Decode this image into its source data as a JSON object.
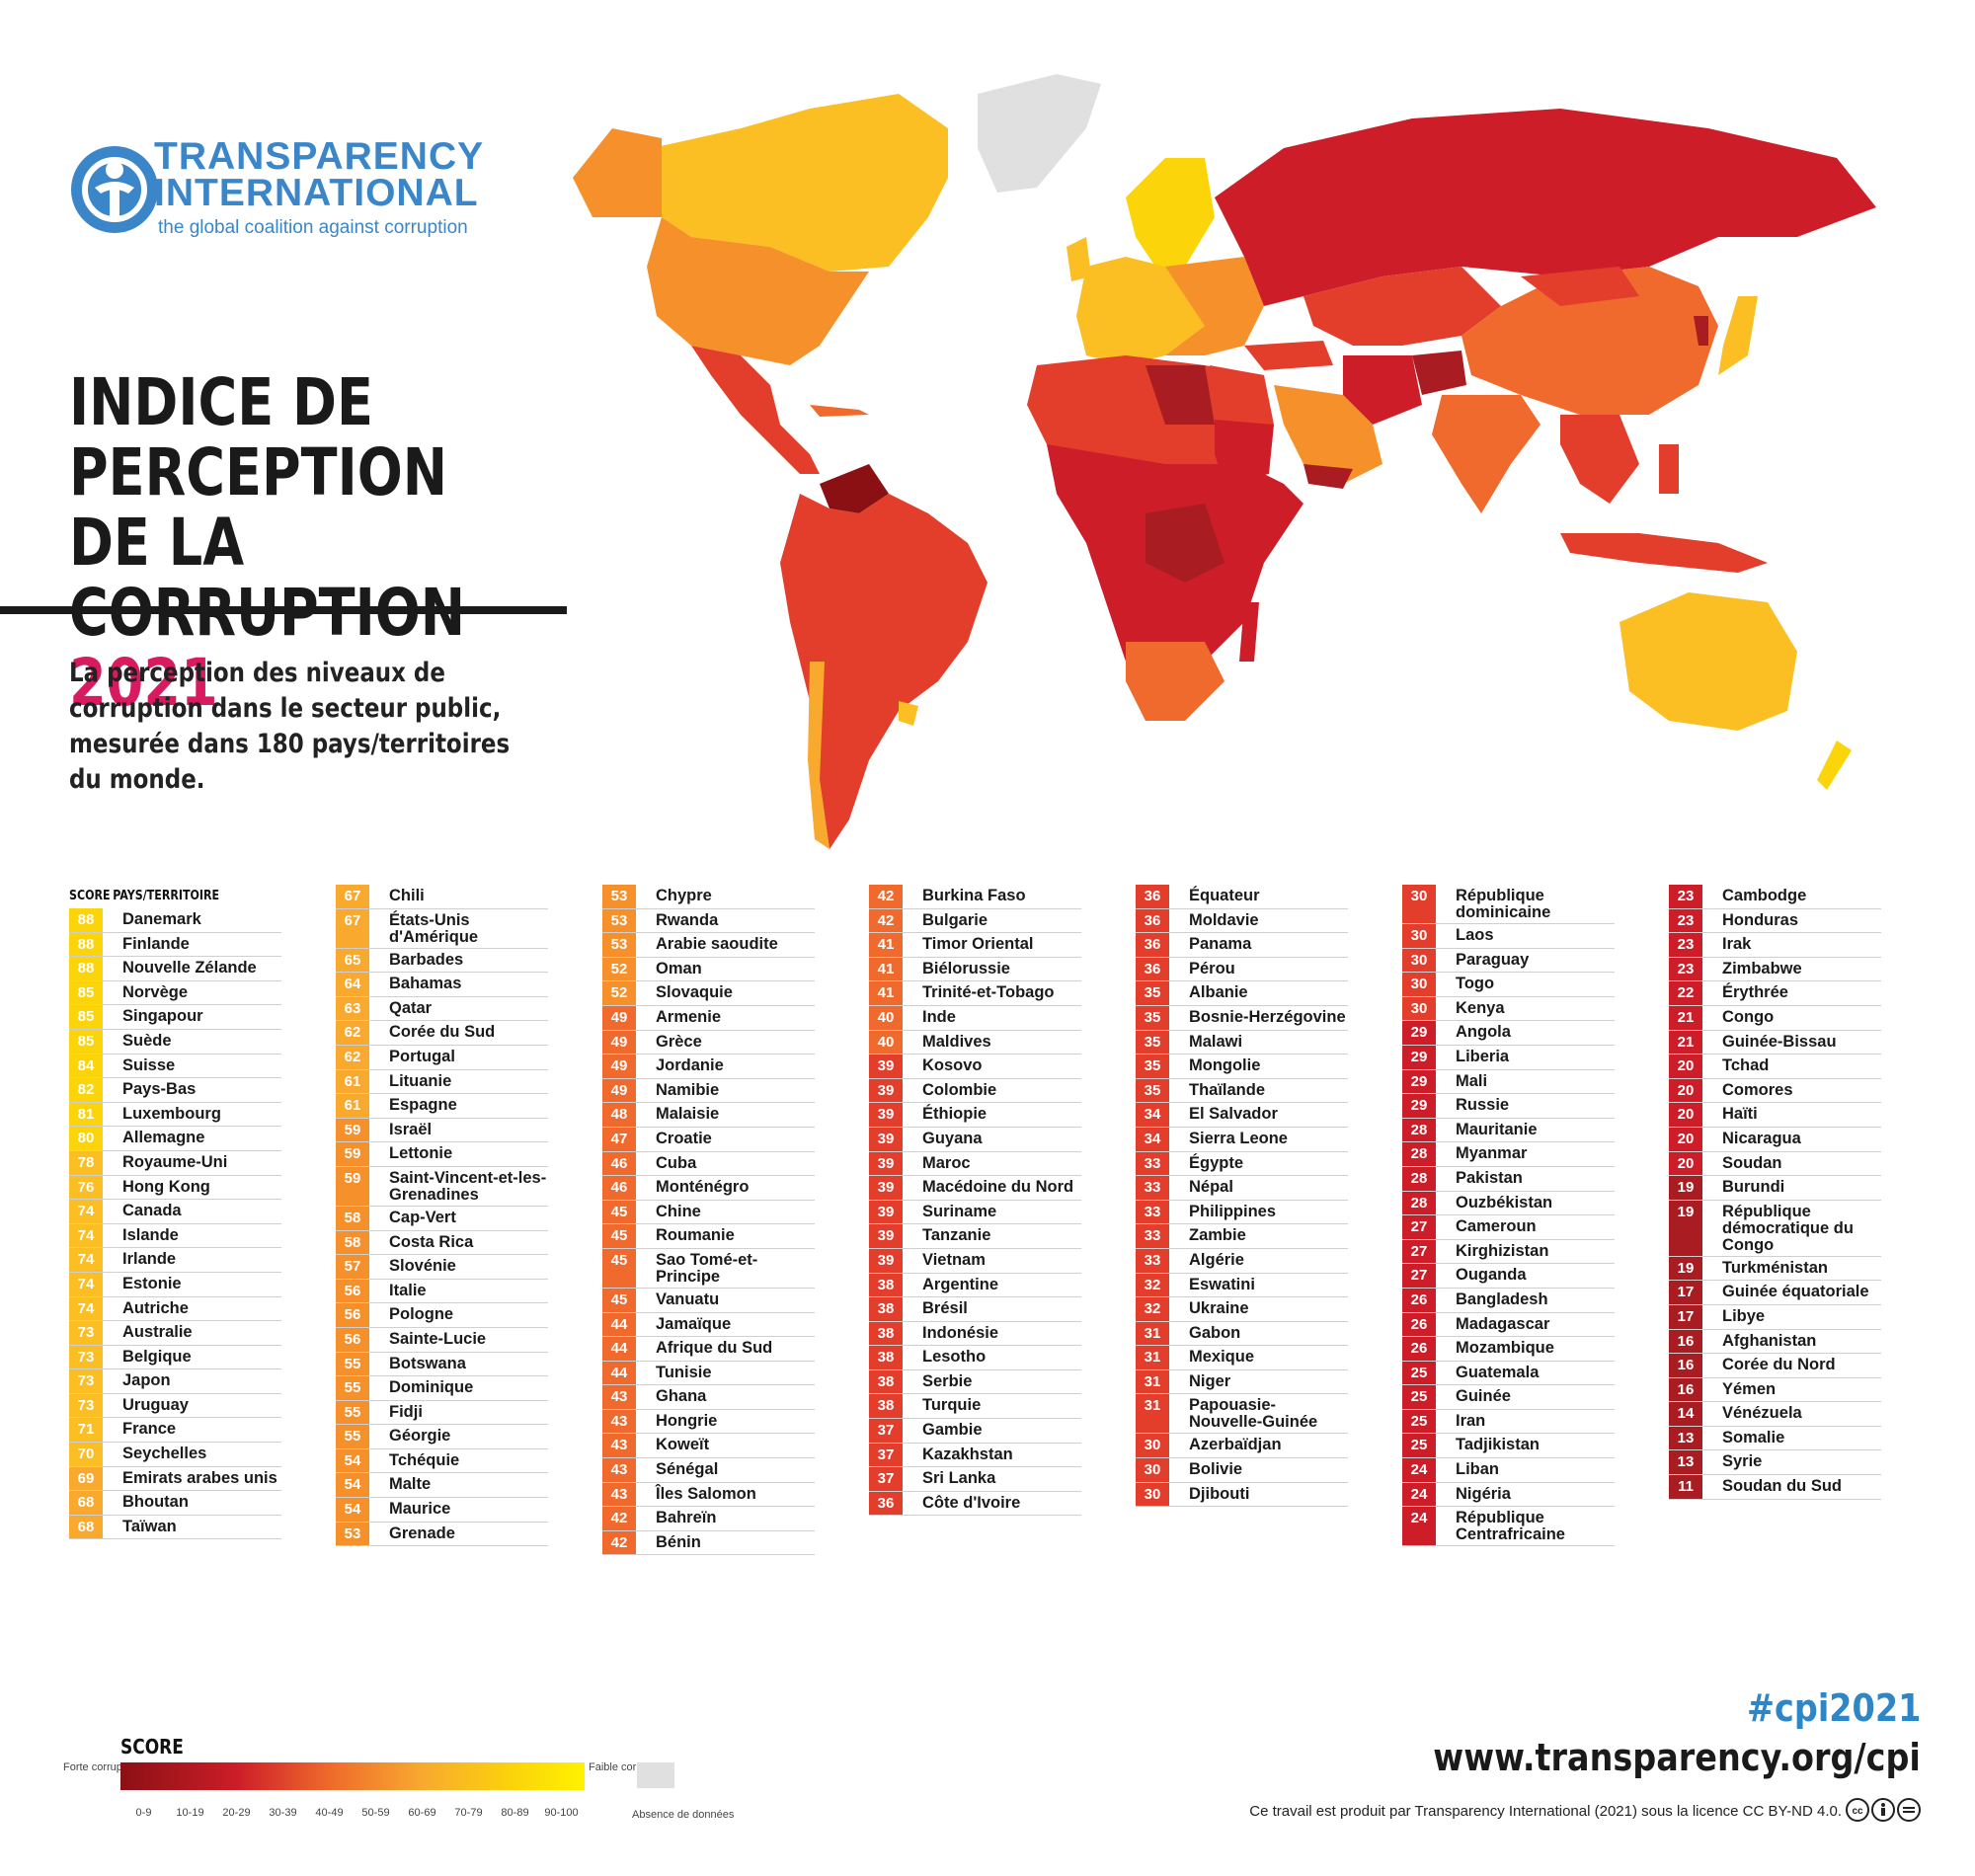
{
  "logo": {
    "line1": "TRANSPARENCY",
    "line2": "INTERNATIONAL",
    "tagline": "the global coalition against corruption"
  },
  "title": {
    "line1": "INDICE DE",
    "line2": "PERCEPTION DE LA",
    "line3": "CORRUPTION",
    "year": "2021"
  },
  "subtitle": "La perception des niveaux de corruption dans le secteur public, mesurée dans 180 pays/territoires du monde.",
  "table_headers": {
    "score": "SCORE",
    "country": "PAYS/TERRITOIRE"
  },
  "colors": {
    "s0_9": "#8b1014",
    "s10_19": "#a91d22",
    "s20_29": "#cc1d28",
    "s30_39": "#e33e2c",
    "s40_49": "#ef6a2c",
    "s50_59": "#f5902b",
    "s60_69": "#f8a92e",
    "s70_79": "#fbbf24",
    "s80_89": "#fbd40a",
    "s90_100": "#fff200",
    "no_data": "#e0e0e0",
    "accent": "#d81b60",
    "brand": "#3a86c8"
  },
  "columns": [
    [
      {
        "score": "88",
        "name": "Danemark"
      },
      {
        "score": "88",
        "name": "Finlande"
      },
      {
        "score": "88",
        "name": "Nouvelle Zélande"
      },
      {
        "score": "85",
        "name": "Norvège"
      },
      {
        "score": "85",
        "name": "Singapour"
      },
      {
        "score": "85",
        "name": "Suède"
      },
      {
        "score": "84",
        "name": "Suisse"
      },
      {
        "score": "82",
        "name": "Pays-Bas"
      },
      {
        "score": "81",
        "name": "Luxembourg"
      },
      {
        "score": "80",
        "name": "Allemagne"
      },
      {
        "score": "78",
        "name": "Royaume-Uni"
      },
      {
        "score": "76",
        "name": "Hong Kong"
      },
      {
        "score": "74",
        "name": "Canada"
      },
      {
        "score": "74",
        "name": "Islande"
      },
      {
        "score": "74",
        "name": "Irlande"
      },
      {
        "score": "74",
        "name": "Estonie"
      },
      {
        "score": "74",
        "name": "Autriche"
      },
      {
        "score": "73",
        "name": "Australie"
      },
      {
        "score": "73",
        "name": "Belgique"
      },
      {
        "score": "73",
        "name": "Japon"
      },
      {
        "score": "73",
        "name": "Uruguay"
      },
      {
        "score": "71",
        "name": "France"
      },
      {
        "score": "70",
        "name": "Seychelles"
      },
      {
        "score": "69",
        "name": "Emirats arabes unis"
      },
      {
        "score": "68",
        "name": "Bhoutan"
      },
      {
        "score": "68",
        "name": "Taïwan"
      }
    ],
    [
      {
        "score": "67",
        "name": "Chili"
      },
      {
        "score": "67",
        "name": "États-Unis d'Amérique"
      },
      {
        "score": "65",
        "name": "Barbades"
      },
      {
        "score": "64",
        "name": "Bahamas"
      },
      {
        "score": "63",
        "name": "Qatar"
      },
      {
        "score": "62",
        "name": "Corée du Sud"
      },
      {
        "score": "62",
        "name": "Portugal"
      },
      {
        "score": "61",
        "name": "Lituanie"
      },
      {
        "score": "61",
        "name": "Espagne"
      },
      {
        "score": "59",
        "name": "Israël"
      },
      {
        "score": "59",
        "name": "Lettonie"
      },
      {
        "score": "59",
        "name": "Saint-Vincent-et-les-Grenadines"
      },
      {
        "score": "58",
        "name": "Cap-Vert"
      },
      {
        "score": "58",
        "name": "Costa Rica"
      },
      {
        "score": "57",
        "name": "Slovénie"
      },
      {
        "score": "56",
        "name": "Italie"
      },
      {
        "score": "56",
        "name": "Pologne"
      },
      {
        "score": "56",
        "name": "Sainte-Lucie"
      },
      {
        "score": "55",
        "name": "Botswana"
      },
      {
        "score": "55",
        "name": "Dominique"
      },
      {
        "score": "55",
        "name": "Fidji"
      },
      {
        "score": "55",
        "name": "Géorgie"
      },
      {
        "score": "54",
        "name": "Tchéquie"
      },
      {
        "score": "54",
        "name": "Malte"
      },
      {
        "score": "54",
        "name": "Maurice"
      },
      {
        "score": "53",
        "name": "Grenade"
      }
    ],
    [
      {
        "score": "53",
        "name": "Chypre"
      },
      {
        "score": "53",
        "name": "Rwanda"
      },
      {
        "score": "53",
        "name": "Arabie saoudite"
      },
      {
        "score": "52",
        "name": "Oman"
      },
      {
        "score": "52",
        "name": "Slovaquie"
      },
      {
        "score": "49",
        "name": "Armenie"
      },
      {
        "score": "49",
        "name": "Grèce"
      },
      {
        "score": "49",
        "name": "Jordanie"
      },
      {
        "score": "49",
        "name": "Namibie"
      },
      {
        "score": "48",
        "name": "Malaisie"
      },
      {
        "score": "47",
        "name": "Croatie"
      },
      {
        "score": "46",
        "name": "Cuba"
      },
      {
        "score": "46",
        "name": "Monténégro"
      },
      {
        "score": "45",
        "name": "Chine"
      },
      {
        "score": "45",
        "name": "Roumanie"
      },
      {
        "score": "45",
        "name": "Sao Tomé-et-Principe"
      },
      {
        "score": "45",
        "name": "Vanuatu"
      },
      {
        "score": "44",
        "name": "Jamaïque"
      },
      {
        "score": "44",
        "name": "Afrique du Sud"
      },
      {
        "score": "44",
        "name": "Tunisie"
      },
      {
        "score": "43",
        "name": "Ghana"
      },
      {
        "score": "43",
        "name": "Hongrie"
      },
      {
        "score": "43",
        "name": "Koweït"
      },
      {
        "score": "43",
        "name": "Sénégal"
      },
      {
        "score": "43",
        "name": "Îles Salomon"
      },
      {
        "score": "42",
        "name": "Bahreïn"
      },
      {
        "score": "42",
        "name": "Bénin"
      }
    ],
    [
      {
        "score": "42",
        "name": "Burkina Faso"
      },
      {
        "score": "42",
        "name": "Bulgarie"
      },
      {
        "score": "41",
        "name": "Timor Oriental"
      },
      {
        "score": "41",
        "name": "Biélorussie"
      },
      {
        "score": "41",
        "name": "Trinité-et-Tobago"
      },
      {
        "score": "40",
        "name": "Inde"
      },
      {
        "score": "40",
        "name": "Maldives"
      },
      {
        "score": "39",
        "name": "Kosovo"
      },
      {
        "score": "39",
        "name": "Colombie"
      },
      {
        "score": "39",
        "name": "Éthiopie"
      },
      {
        "score": "39",
        "name": "Guyana"
      },
      {
        "score": "39",
        "name": "Maroc"
      },
      {
        "score": "39",
        "name": "Macédoine du Nord"
      },
      {
        "score": "39",
        "name": "Suriname"
      },
      {
        "score": "39",
        "name": "Tanzanie"
      },
      {
        "score": "39",
        "name": "Vietnam"
      },
      {
        "score": "38",
        "name": "Argentine"
      },
      {
        "score": "38",
        "name": "Brésil"
      },
      {
        "score": "38",
        "name": "Indonésie"
      },
      {
        "score": "38",
        "name": "Lesotho"
      },
      {
        "score": "38",
        "name": "Serbie"
      },
      {
        "score": "38",
        "name": "Turquie"
      },
      {
        "score": "37",
        "name": "Gambie"
      },
      {
        "score": "37",
        "name": "Kazakhstan"
      },
      {
        "score": "37",
        "name": "Sri Lanka"
      },
      {
        "score": "36",
        "name": "Côte d'Ivoire"
      }
    ],
    [
      {
        "score": "36",
        "name": "Équateur"
      },
      {
        "score": "36",
        "name": "Moldavie"
      },
      {
        "score": "36",
        "name": "Panama"
      },
      {
        "score": "36",
        "name": "Pérou"
      },
      {
        "score": "35",
        "name": "Albanie"
      },
      {
        "score": "35",
        "name": "Bosnie-Herzégovine"
      },
      {
        "score": "35",
        "name": "Malawi"
      },
      {
        "score": "35",
        "name": "Mongolie"
      },
      {
        "score": "35",
        "name": "Thaïlande"
      },
      {
        "score": "34",
        "name": "El Salvador"
      },
      {
        "score": "34",
        "name": "Sierra Leone"
      },
      {
        "score": "33",
        "name": "Égypte"
      },
      {
        "score": "33",
        "name": "Népal"
      },
      {
        "score": "33",
        "name": "Philippines"
      },
      {
        "score": "33",
        "name": "Zambie"
      },
      {
        "score": "33",
        "name": "Algérie"
      },
      {
        "score": "32",
        "name": "Eswatini"
      },
      {
        "score": "32",
        "name": "Ukraine"
      },
      {
        "score": "31",
        "name": "Gabon"
      },
      {
        "score": "31",
        "name": "Mexique"
      },
      {
        "score": "31",
        "name": "Niger"
      },
      {
        "score": "31",
        "name": "Papouasie-Nouvelle-Guinée"
      },
      {
        "score": "30",
        "name": "Azerbaïdjan"
      },
      {
        "score": "30",
        "name": "Bolivie"
      },
      {
        "score": "30",
        "name": "Djibouti"
      }
    ],
    [
      {
        "score": "30",
        "name": "République dominicaine"
      },
      {
        "score": "30",
        "name": "Laos"
      },
      {
        "score": "30",
        "name": "Paraguay"
      },
      {
        "score": "30",
        "name": "Togo"
      },
      {
        "score": "30",
        "name": "Kenya"
      },
      {
        "score": "29",
        "name": "Angola"
      },
      {
        "score": "29",
        "name": "Liberia"
      },
      {
        "score": "29",
        "name": "Mali"
      },
      {
        "score": "29",
        "name": "Russie"
      },
      {
        "score": "28",
        "name": "Mauritanie"
      },
      {
        "score": "28",
        "name": "Myanmar"
      },
      {
        "score": "28",
        "name": "Pakistan"
      },
      {
        "score": "28",
        "name": "Ouzbékistan"
      },
      {
        "score": "27",
        "name": "Cameroun"
      },
      {
        "score": "27",
        "name": "Kirghizistan"
      },
      {
        "score": "27",
        "name": "Ouganda"
      },
      {
        "score": "26",
        "name": "Bangladesh"
      },
      {
        "score": "26",
        "name": "Madagascar"
      },
      {
        "score": "26",
        "name": "Mozambique"
      },
      {
        "score": "25",
        "name": "Guatemala"
      },
      {
        "score": "25",
        "name": "Guinée"
      },
      {
        "score": "25",
        "name": "Iran"
      },
      {
        "score": "25",
        "name": "Tadjikistan"
      },
      {
        "score": "24",
        "name": "Liban"
      },
      {
        "score": "24",
        "name": "Nigéria"
      },
      {
        "score": "24",
        "name": "République Centrafricaine"
      }
    ],
    [
      {
        "score": "23",
        "name": "Cambodge"
      },
      {
        "score": "23",
        "name": "Honduras"
      },
      {
        "score": "23",
        "name": "Irak"
      },
      {
        "score": "23",
        "name": "Zimbabwe"
      },
      {
        "score": "22",
        "name": "Érythrée"
      },
      {
        "score": "21",
        "name": "Congo"
      },
      {
        "score": "21",
        "name": "Guinée-Bissau"
      },
      {
        "score": "20",
        "name": "Tchad"
      },
      {
        "score": "20",
        "name": "Comores"
      },
      {
        "score": "20",
        "name": "Haïti"
      },
      {
        "score": "20",
        "name": "Nicaragua"
      },
      {
        "score": "20",
        "name": "Soudan"
      },
      {
        "score": "19",
        "name": "Burundi"
      },
      {
        "score": "19",
        "name": "République démocratique du Congo"
      },
      {
        "score": "19",
        "name": "Turkménistan"
      },
      {
        "score": "17",
        "name": "Guinée équatoriale"
      },
      {
        "score": "17",
        "name": "Libye"
      },
      {
        "score": "16",
        "name": "Afghanistan"
      },
      {
        "score": "16",
        "name": "Corée du Nord"
      },
      {
        "score": "16",
        "name": "Yémen"
      },
      {
        "score": "14",
        "name": "Vénézuela"
      },
      {
        "score": "13",
        "name": "Somalie"
      },
      {
        "score": "13",
        "name": "Syrie"
      },
      {
        "score": "11",
        "name": "Soudan du Sud"
      }
    ]
  ],
  "legend": {
    "title": "SCORE",
    "left_label": "Forte corruption",
    "right_label": "Faible corruption",
    "no_data_label": "Absence de données",
    "ranges": [
      "0-9",
      "10-19",
      "20-29",
      "30-39",
      "40-49",
      "50-59",
      "60-69",
      "70-79",
      "80-89",
      "90-100"
    ]
  },
  "footer": {
    "hashtag": "#cpi2021",
    "url": "www.transparency.org/cpi",
    "license": "Ce travail est produit par Transparency International (2021) sous la licence CC BY-ND 4.0."
  }
}
